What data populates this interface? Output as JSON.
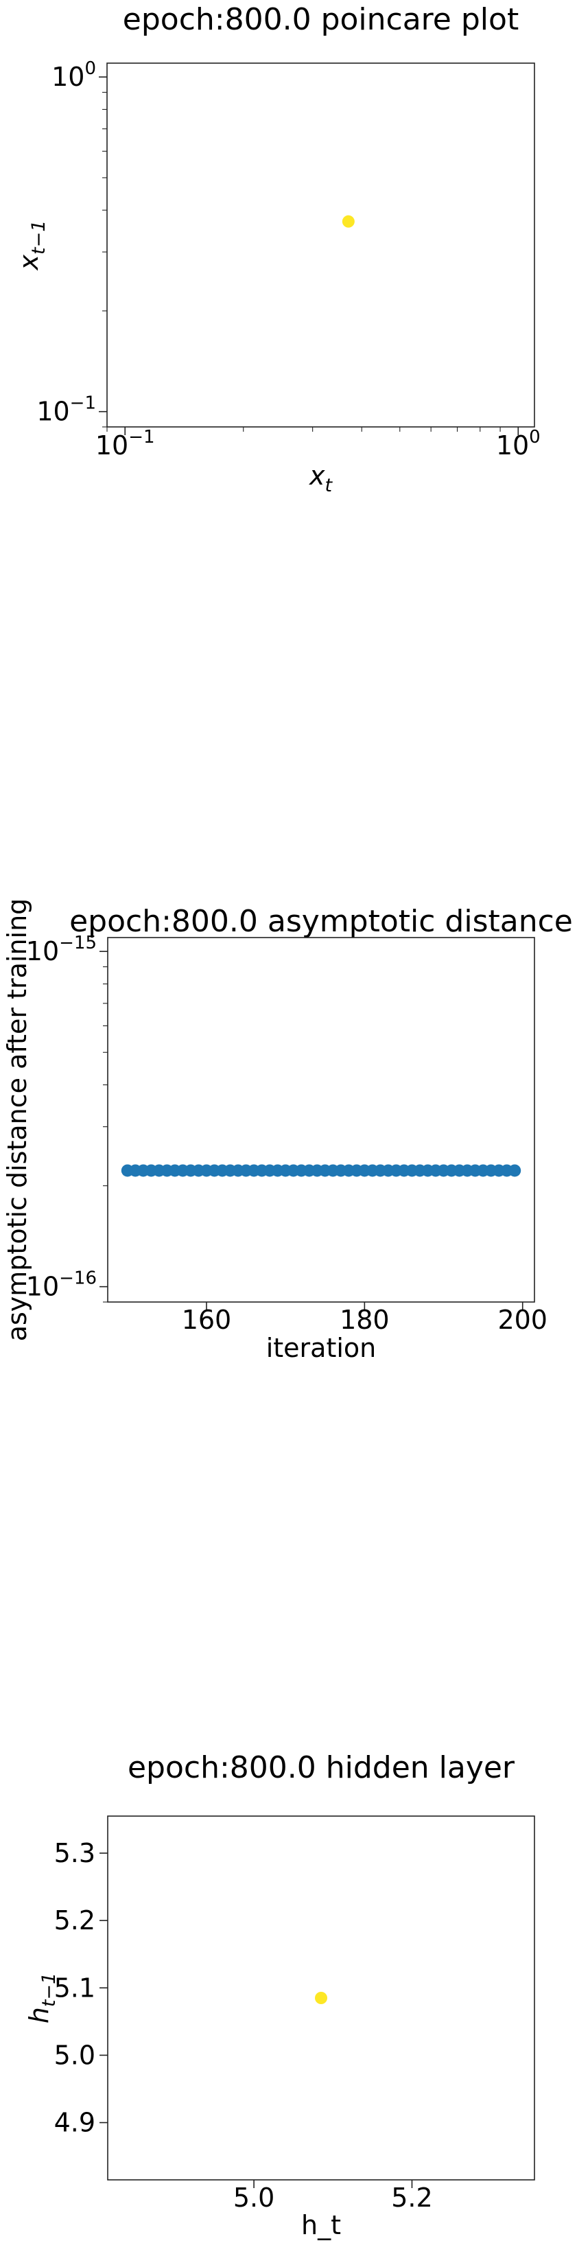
{
  "chart_data": [
    {
      "type": "scatter",
      "title": "epoch:800.0 poincare plot",
      "xlabel": "x",
      "xlabel_sub": "t",
      "ylabel": "x",
      "ylabel_sub": "t−1",
      "xscale": "log",
      "yscale": "log",
      "xlim": [
        0.09,
        1.1
      ],
      "ylim": [
        0.09,
        1.1
      ],
      "xticks": [
        {
          "value": 0.1,
          "base": "10",
          "exp": "−1"
        },
        {
          "value": 1,
          "base": "10",
          "exp": "0"
        }
      ],
      "yticks": [
        {
          "value": 0.1,
          "base": "10",
          "exp": "−1"
        },
        {
          "value": 1,
          "base": "10",
          "exp": "0"
        }
      ],
      "grid": false,
      "points": [
        {
          "x": 0.37,
          "y": 0.37
        }
      ],
      "color": "#fde725"
    },
    {
      "type": "scatter",
      "title": "epoch:800.0 asymptotic distance",
      "xlabel": "iteration",
      "ylabel": "asymptotic distance after training",
      "xscale": "linear",
      "yscale": "log",
      "xlim": [
        147.5,
        201.5
      ],
      "ylim": [
        9e-17,
        1.1e-15
      ],
      "xticks": [
        {
          "value": 160,
          "label": "160"
        },
        {
          "value": 180,
          "label": "180"
        },
        {
          "value": 200,
          "label": "200"
        }
      ],
      "yticks": [
        {
          "value": 1e-16,
          "base": "10",
          "exp": "−16"
        },
        {
          "value": 1e-15,
          "base": "10",
          "exp": "−15"
        }
      ],
      "grid": false,
      "x_start": 150,
      "x_end": 199,
      "y_value": 2.22e-16,
      "color": "#1f77b4"
    },
    {
      "type": "scatter",
      "title": "epoch:800.0 hidden layer",
      "xlabel": "h_t",
      "ylabel": "h",
      "ylabel_sub": "t−1",
      "xscale": "linear",
      "yscale": "linear",
      "xlim": [
        4.815,
        5.355
      ],
      "ylim": [
        4.815,
        5.355
      ],
      "xticks": [
        {
          "value": 5.0,
          "label": "5.0"
        },
        {
          "value": 5.2,
          "label": "5.2"
        }
      ],
      "yticks": [
        {
          "value": 4.9,
          "label": "4.9"
        },
        {
          "value": 5.0,
          "label": "5.0"
        },
        {
          "value": 5.1,
          "label": "5.1"
        },
        {
          "value": 5.2,
          "label": "5.2"
        },
        {
          "value": 5.3,
          "label": "5.3"
        }
      ],
      "grid": false,
      "points": [
        {
          "x": 5.085,
          "y": 5.085
        }
      ],
      "color": "#fde725"
    }
  ]
}
